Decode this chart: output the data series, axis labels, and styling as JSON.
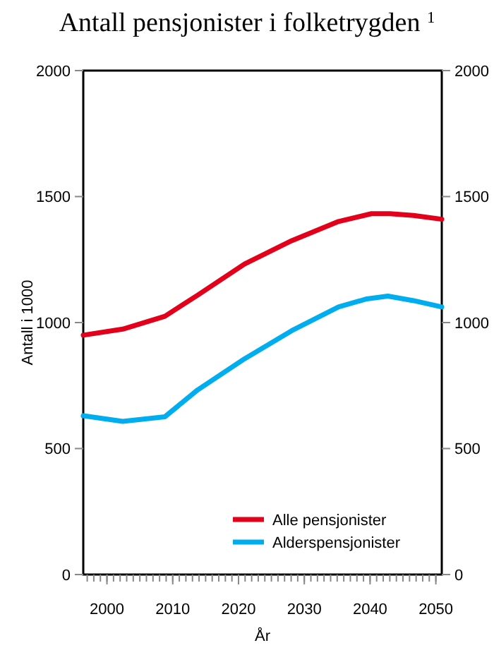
{
  "chart_data": {
    "type": "line",
    "title": "Antall pensjonister i folketrygden $^{1}$",
    "xlabel": "År",
    "ylabel": "Antall i 1000",
    "xlim": [
      1996.4,
      2050.9
    ],
    "xticks": [
      2000,
      2010,
      2020,
      2030,
      2040,
      2050
    ],
    "ylim": [
      0,
      2000
    ],
    "yticks": [
      0,
      500,
      1000,
      1500,
      2000
    ],
    "y2lim": [
      0,
      2000
    ],
    "y2ticks": [
      0,
      500,
      1000,
      1500,
      2000
    ],
    "legend": "bottom right",
    "grid": false,
    "marker": "none",
    "line_style": "solid",
    "series": [
      {
        "name": "Alle pensjonister",
        "color": "#e2001a",
        "x": [
          1996.4,
          2002.4,
          2008.8,
          2013.8,
          2020.9,
          2028.1,
          2035.2,
          2040.2,
          2043.0,
          2046.6,
          2050.9
        ],
        "values": [
          950,
          974,
          1025,
          1109,
          1232,
          1325,
          1401,
          1432,
          1432,
          1425,
          1410
        ]
      },
      {
        "name": "Alderspensjonister",
        "color": "#00aeef",
        "x": [
          1996.4,
          2002.4,
          2008.8,
          2013.8,
          2020.9,
          2028.1,
          2035.2,
          2039.5,
          2042.7,
          2046.6,
          2050.9
        ],
        "values": [
          630,
          608,
          626,
          733,
          856,
          968,
          1062,
          1094,
          1105,
          1087,
          1062
        ]
      }
    ]
  }
}
